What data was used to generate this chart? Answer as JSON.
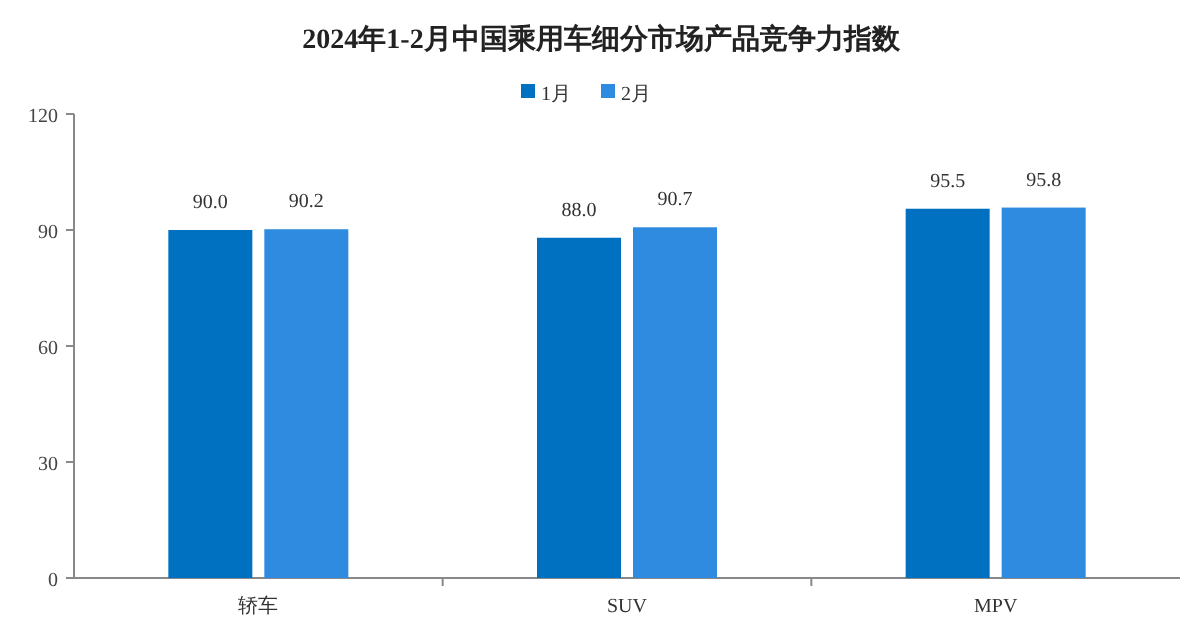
{
  "chart_data": {
    "type": "bar",
    "title": "2024年1-2月中国乘用车细分市场产品竞争力指数",
    "categories": [
      "轿车",
      "SUV",
      "MPV"
    ],
    "series": [
      {
        "name": "1月",
        "color": "#0070c0",
        "values": [
          90.0,
          88.0,
          95.5
        ],
        "value_labels": [
          "90.0",
          "88.0",
          "95.5"
        ]
      },
      {
        "name": "2月",
        "color": "#2e8be0",
        "values": [
          90.2,
          90.7,
          95.8
        ],
        "value_labels": [
          "90.2",
          "90.7",
          "95.8"
        ]
      }
    ],
    "ylim": [
      0,
      120
    ],
    "yticks": [
      0,
      30,
      60,
      90,
      120
    ],
    "grid": false,
    "legend": "top"
  }
}
